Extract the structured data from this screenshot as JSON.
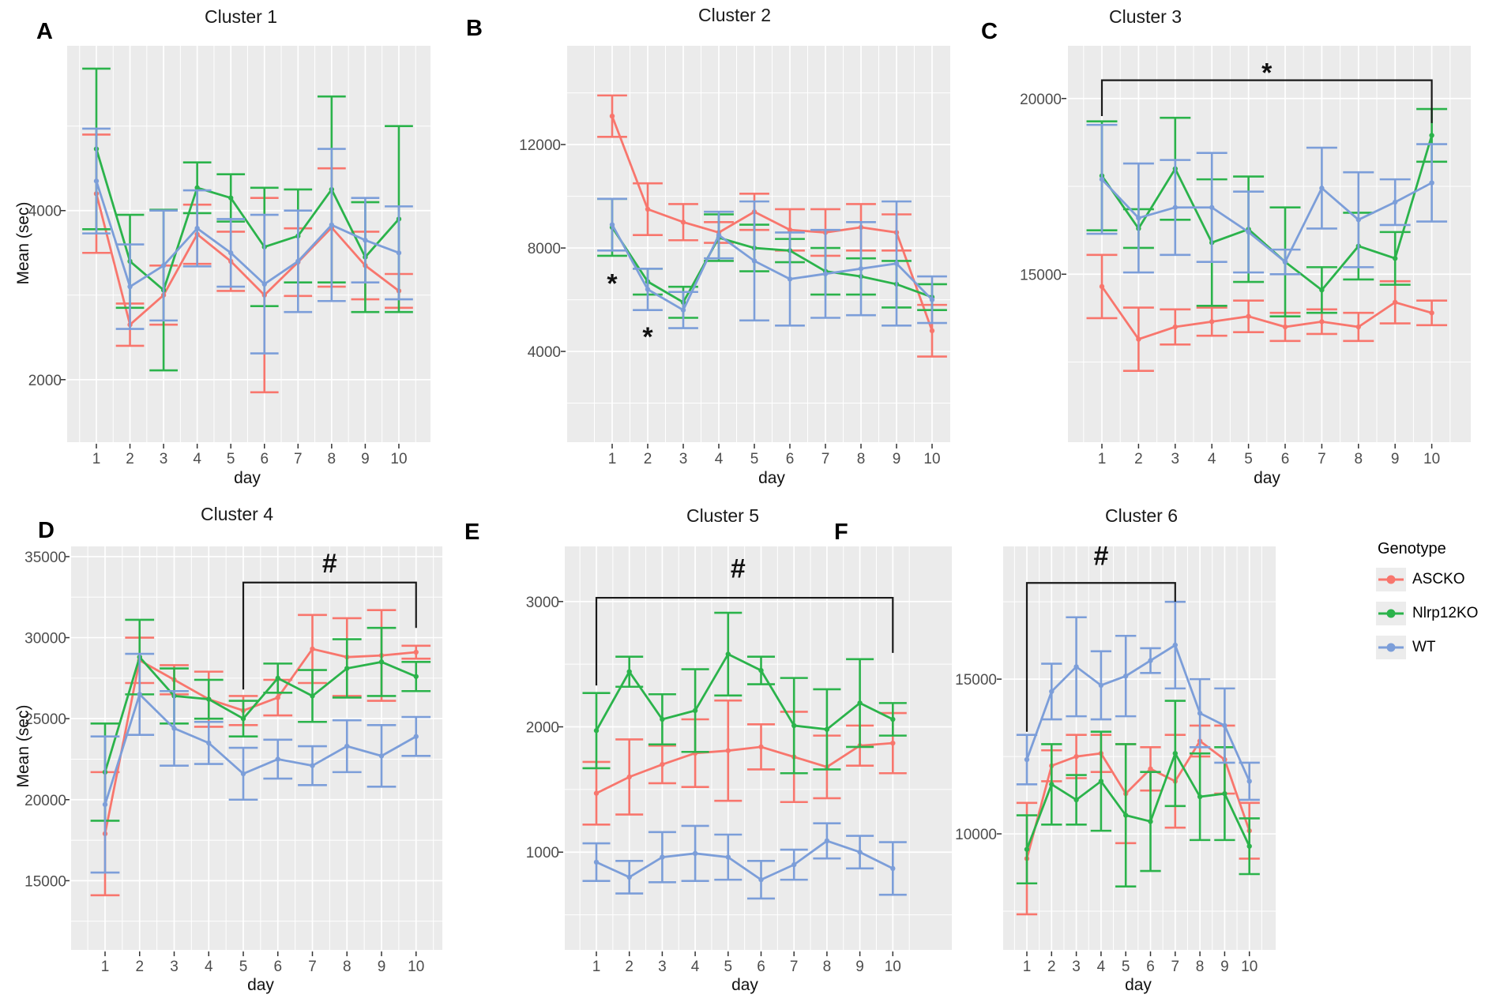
{
  "legend": {
    "title": "Genotype",
    "entries": [
      {
        "label": "ASCKO",
        "color": "#F8766D"
      },
      {
        "label": "Nlrp12KO",
        "color": "#2BB34B"
      },
      {
        "label": "WT",
        "color": "#7C9ED9"
      }
    ]
  },
  "colors": {
    "panel_bg": "#EBEBEB",
    "grid": "#FFFFFF",
    "tick_label": "#4D4D4D",
    "ascko": "#F8766D",
    "nlrp12ko": "#2BB34B",
    "wt": "#7C9ED9",
    "bracket": "#1a1a1a"
  },
  "chart_data": [
    {
      "type": "line",
      "letter": "A",
      "title": "Cluster 1",
      "xlabel": "day",
      "ylabel": "Mean (sec)",
      "x": [
        1,
        2,
        3,
        4,
        5,
        6,
        7,
        8,
        9,
        10
      ],
      "ylim": [
        1260,
        5950
      ],
      "yticks": [
        2000,
        4000
      ],
      "grid": true,
      "legend_position": "outside-right-of-panel-F",
      "series": [
        {
          "name": "ASCKO",
          "color": "#F8766D",
          "values": [
            4200,
            2650,
            3000,
            3720,
            3400,
            3000,
            3390,
            3800,
            3350,
            3050
          ],
          "errors": [
            700,
            250,
            350,
            350,
            350,
            1150,
            400,
            700,
            400,
            200
          ]
        },
        {
          "name": "Nlrp12KO",
          "color": "#2BB34B",
          "values": [
            4730,
            3400,
            3060,
            4270,
            4150,
            3570,
            3700,
            4250,
            3450,
            3900
          ],
          "errors": [
            950,
            550,
            950,
            300,
            280,
            700,
            550,
            1100,
            650,
            1100
          ]
        },
        {
          "name": "WT",
          "color": "#7C9ED9",
          "values": [
            4350,
            3100,
            3350,
            3790,
            3500,
            3130,
            3400,
            3830,
            3650,
            3500
          ],
          "errors": [
            620,
            500,
            650,
            450,
            400,
            820,
            600,
            900,
            500,
            550
          ]
        }
      ],
      "significance": null,
      "annotations": []
    },
    {
      "type": "line",
      "letter": "B",
      "title": "Cluster 2",
      "xlabel": "day",
      "ylabel": "",
      "x": [
        1,
        2,
        3,
        4,
        5,
        6,
        7,
        8,
        9,
        10
      ],
      "ylim": [
        490,
        15820
      ],
      "yticks": [
        4000,
        8000,
        12000
      ],
      "grid": true,
      "series": [
        {
          "name": "ASCKO",
          "color": "#F8766D",
          "values": [
            13100,
            9500,
            9000,
            8600,
            9400,
            8700,
            8600,
            8800,
            8600,
            4800
          ],
          "errors": [
            800,
            1000,
            700,
            400,
            700,
            800,
            900,
            900,
            700,
            1000
          ]
        },
        {
          "name": "Nlrp12KO",
          "color": "#2BB34B",
          "values": [
            8800,
            6700,
            5900,
            8400,
            8000,
            7900,
            7100,
            6900,
            6600,
            6100
          ],
          "errors": [
            1100,
            500,
            600,
            900,
            900,
            450,
            900,
            700,
            900,
            500
          ]
        },
        {
          "name": "WT",
          "color": "#7C9ED9",
          "values": [
            8900,
            6400,
            5600,
            8500,
            7500,
            6800,
            7000,
            7200,
            7400,
            6000
          ],
          "errors": [
            1000,
            800,
            700,
            900,
            2300,
            1800,
            1700,
            1800,
            2400,
            900
          ]
        }
      ],
      "significance": null,
      "annotations": [
        {
          "day": 1,
          "value": 6850,
          "text": "*"
        },
        {
          "day": 2,
          "value": 4800,
          "text": "*"
        }
      ]
    },
    {
      "type": "line",
      "letter": "C",
      "title": "Cluster 3",
      "xlabel": "day",
      "ylabel": "",
      "x": [
        1,
        2,
        3,
        4,
        5,
        6,
        7,
        8,
        9,
        10
      ],
      "ylim": [
        10220,
        21500
      ],
      "yticks": [
        15000,
        20000
      ],
      "grid": true,
      "series": [
        {
          "name": "ASCKO",
          "color": "#F8766D",
          "values": [
            14650,
            13150,
            13500,
            13650,
            13800,
            13500,
            13650,
            13500,
            14200,
            13900
          ],
          "errors": [
            900,
            900,
            500,
            400,
            450,
            400,
            350,
            400,
            600,
            350
          ]
        },
        {
          "name": "Nlrp12KO",
          "color": "#2BB34B",
          "values": [
            17800,
            16300,
            18000,
            15900,
            16280,
            15350,
            14550,
            15800,
            15450,
            18950
          ],
          "errors": [
            1550,
            550,
            1450,
            1800,
            1500,
            1550,
            650,
            950,
            750,
            750
          ]
        },
        {
          "name": "WT",
          "color": "#7C9ED9",
          "values": [
            17700,
            16600,
            16900,
            16900,
            16200,
            15350,
            17450,
            16550,
            17050,
            17600
          ],
          "errors": [
            1550,
            1550,
            1350,
            1550,
            1150,
            350,
            1150,
            1350,
            650,
            1100
          ]
        }
      ],
      "significance": {
        "from_day": 1,
        "to_day": 10,
        "label": "*",
        "bar_value": 20520,
        "left_tick_to": 19500,
        "right_tick_to": 19300,
        "label_day": 5.5,
        "label_value": 20900
      },
      "annotations": []
    },
    {
      "type": "line",
      "letter": "D",
      "title": "Cluster 4",
      "xlabel": "day",
      "ylabel": "Mean (sec)",
      "x": [
        1,
        2,
        3,
        4,
        5,
        6,
        7,
        8,
        9,
        10
      ],
      "ylim": [
        10730,
        35630
      ],
      "yticks": [
        15000,
        20000,
        25000,
        30000,
        35000
      ],
      "grid": true,
      "series": [
        {
          "name": "ASCKO",
          "color": "#F8766D",
          "values": [
            17900,
            28600,
            27400,
            26200,
            25500,
            26300,
            29300,
            28800,
            28900,
            29100
          ],
          "errors": [
            3800,
            1400,
            900,
            1700,
            900,
            1100,
            2100,
            2400,
            2800,
            400
          ]
        },
        {
          "name": "Nlrp12KO",
          "color": "#2BB34B",
          "values": [
            21700,
            28800,
            26400,
            26200,
            25000,
            27500,
            26400,
            28100,
            28500,
            27600
          ],
          "errors": [
            3000,
            2300,
            1700,
            1200,
            1100,
            900,
            1600,
            1800,
            2100,
            900
          ]
        },
        {
          "name": "WT",
          "color": "#7C9ED9",
          "values": [
            19700,
            26500,
            24400,
            23500,
            21600,
            22500,
            22100,
            23300,
            22700,
            23900
          ],
          "errors": [
            4200,
            2500,
            2300,
            1300,
            1600,
            1200,
            1200,
            1600,
            1900,
            1200
          ]
        }
      ],
      "significance": {
        "from_day": 5,
        "to_day": 10,
        "label": "#",
        "bar_value": 33400,
        "left_tick_to": 26800,
        "right_tick_to": 30600,
        "label_day": 7.5,
        "label_value": 34400
      },
      "annotations": []
    },
    {
      "type": "line",
      "letter": "E",
      "title": "Cluster 5",
      "xlabel": "day",
      "ylabel": "",
      "x": [
        1,
        2,
        3,
        4,
        5,
        6,
        7,
        8,
        9,
        10
      ],
      "ylim": [
        220,
        3440
      ],
      "yticks": [
        1000,
        2000,
        3000
      ],
      "grid": true,
      "series": [
        {
          "name": "ASCKO",
          "color": "#F8766D",
          "values": [
            1470,
            1600,
            1700,
            1790,
            1810,
            1840,
            1760,
            1680,
            1850,
            1870
          ],
          "errors": [
            250,
            300,
            150,
            270,
            400,
            180,
            360,
            250,
            160,
            240
          ]
        },
        {
          "name": "Nlrp12KO",
          "color": "#2BB34B",
          "values": [
            1970,
            2440,
            2060,
            2130,
            2580,
            2450,
            2010,
            1980,
            2190,
            2060
          ],
          "errors": [
            300,
            120,
            200,
            330,
            330,
            110,
            380,
            320,
            350,
            130
          ]
        },
        {
          "name": "WT",
          "color": "#7C9ED9",
          "values": [
            920,
            800,
            960,
            990,
            960,
            780,
            900,
            1090,
            1000,
            870
          ],
          "errors": [
            150,
            130,
            200,
            220,
            180,
            150,
            120,
            140,
            130,
            210
          ]
        }
      ],
      "significance": {
        "from_day": 1,
        "to_day": 10,
        "label": "#",
        "bar_value": 3030,
        "left_tick_to": 2330,
        "right_tick_to": 2590,
        "label_day": 5.3,
        "label_value": 3240
      },
      "annotations": []
    },
    {
      "type": "line",
      "letter": "F",
      "title": "Cluster 6",
      "xlabel": "day",
      "ylabel": "",
      "x": [
        1,
        2,
        3,
        4,
        5,
        6,
        7,
        8,
        9,
        10
      ],
      "ylim": [
        6250,
        19290
      ],
      "yticks": [
        10000,
        15000
      ],
      "grid": true,
      "series": [
        {
          "name": "ASCKO",
          "color": "#F8766D",
          "values": [
            9200,
            12200,
            12500,
            12600,
            11300,
            12100,
            11700,
            13000,
            12400,
            10100
          ],
          "errors": [
            1800,
            500,
            700,
            600,
            1600,
            700,
            1500,
            500,
            1100,
            900
          ]
        },
        {
          "name": "Nlrp12KO",
          "color": "#2BB34B",
          "values": [
            9500,
            11600,
            11100,
            11700,
            10600,
            10400,
            12600,
            11200,
            11300,
            9600
          ],
          "errors": [
            1100,
            1300,
            800,
            1600,
            2300,
            1600,
            1700,
            1400,
            1500,
            900
          ]
        },
        {
          "name": "WT",
          "color": "#7C9ED9",
          "values": [
            12400,
            14600,
            15400,
            14800,
            15100,
            15600,
            16100,
            13900,
            13500,
            11700
          ],
          "errors": [
            800,
            900,
            1600,
            1100,
            1300,
            400,
            1400,
            1100,
            1200,
            600
          ]
        }
      ],
      "significance": {
        "from_day": 1,
        "to_day": 7,
        "label": "#",
        "bar_value": 18110,
        "left_tick_to": 13300,
        "right_tick_to": 17500,
        "label_day": 4,
        "label_value": 18900
      },
      "annotations": []
    }
  ]
}
